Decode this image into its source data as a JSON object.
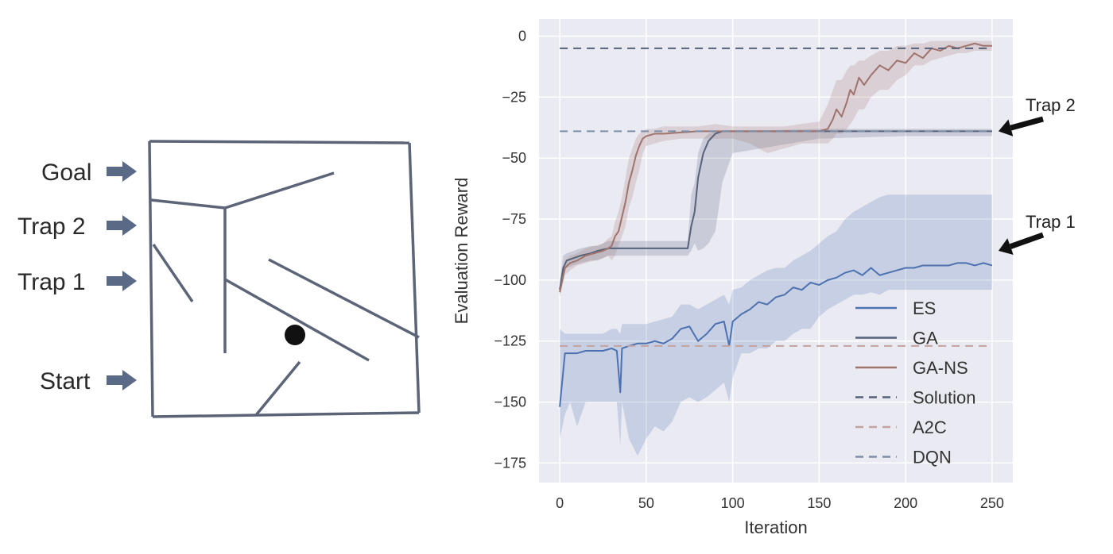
{
  "maze": {
    "labels": [
      "Goal",
      "Trap 2",
      "Trap 1",
      "Start"
    ],
    "wall_color": "#5c6478",
    "arrow_color": "#5a6a86"
  },
  "chart_data": {
    "type": "line",
    "title": "",
    "xlabel": "Iteration",
    "ylabel": "Evaluation Reward",
    "xlim": [
      -12,
      262
    ],
    "ylim": [
      -183,
      7
    ],
    "xticks": [
      0,
      50,
      100,
      150,
      200,
      250
    ],
    "yticks": [
      0,
      -25,
      -50,
      -75,
      -100,
      -125,
      -150,
      -175
    ],
    "xtick_labels": [
      "0",
      "50",
      "100",
      "150",
      "200",
      "250"
    ],
    "ytick_labels": [
      "0",
      "−25",
      "−50",
      "−75",
      "−100",
      "−125",
      "−150",
      "−175"
    ],
    "grid": true,
    "background": "#eaeaf2",
    "legend_position": "lower-right",
    "series": [
      {
        "name": "ES",
        "style": "solid",
        "color": "#4c72b0",
        "x": [
          0,
          3,
          6,
          10,
          15,
          20,
          25,
          30,
          33,
          35,
          36,
          40,
          45,
          50,
          55,
          60,
          65,
          70,
          75,
          80,
          85,
          90,
          95,
          98,
          100,
          105,
          110,
          115,
          120,
          125,
          130,
          135,
          140,
          145,
          150,
          155,
          160,
          165,
          170,
          175,
          180,
          185,
          190,
          195,
          200,
          205,
          210,
          215,
          220,
          225,
          230,
          235,
          240,
          245,
          250
        ],
        "y": [
          -152,
          -130,
          -130,
          -130,
          -129,
          -129,
          -129,
          -128,
          -129,
          -146,
          -128,
          -127,
          -126,
          -126,
          -125,
          -126,
          -124,
          -120,
          -119,
          -125,
          -122,
          -118,
          -117,
          -127,
          -117,
          -114,
          -112,
          -109,
          -110,
          -107,
          -106,
          -103,
          -104,
          -101,
          -102,
          -100,
          -99,
          -97,
          -96,
          -98,
          -95,
          -98,
          -97,
          -96,
          -95,
          -95,
          -94,
          -94,
          -94,
          -94,
          -93,
          -93,
          -94,
          -93,
          -94
        ],
        "band_lower": [
          -165,
          -155,
          -150,
          -160,
          -150,
          -150,
          -150,
          -150,
          -150,
          -168,
          -150,
          -165,
          -172,
          -165,
          -160,
          -162,
          -158,
          -150,
          -148,
          -150,
          -148,
          -145,
          -142,
          -150,
          -140,
          -130,
          -130,
          -128,
          -128,
          -125,
          -125,
          -122,
          -120,
          -120,
          -115,
          -112,
          -110,
          -108,
          -106,
          -106,
          -105,
          -106,
          -104,
          -104,
          -104,
          -104,
          -104,
          -104,
          -104,
          -104,
          -104,
          -104,
          -104,
          -104,
          -104
        ],
        "band_upper": [
          -120,
          -122,
          -122,
          -122,
          -122,
          -122,
          -122,
          -120,
          -120,
          -122,
          -118,
          -118,
          -118,
          -118,
          -117,
          -116,
          -115,
          -110,
          -110,
          -112,
          -110,
          -108,
          -106,
          -110,
          -104,
          -103,
          -100,
          -98,
          -96,
          -95,
          -95,
          -92,
          -90,
          -88,
          -85,
          -82,
          -80,
          -75,
          -72,
          -70,
          -68,
          -66,
          -65,
          -65,
          -65,
          -65,
          -65,
          -65,
          -65,
          -65,
          -65,
          -65,
          -65,
          -65,
          -65
        ]
      },
      {
        "name": "GA",
        "style": "solid",
        "color": "#55627a",
        "x": [
          0,
          2,
          4,
          8,
          12,
          18,
          22,
          28,
          30,
          35,
          40,
          50,
          60,
          70,
          74,
          76,
          78,
          80,
          83,
          86,
          90,
          94,
          100,
          150,
          200,
          250
        ],
        "y": [
          -104,
          -95,
          -92,
          -91,
          -90,
          -89,
          -88,
          -87,
          -87,
          -87,
          -87,
          -87,
          -87,
          -87,
          -87,
          -78,
          -72,
          -58,
          -48,
          -43,
          -40,
          -39,
          -39,
          -39,
          -39,
          -39
        ],
        "band_lower": [
          -106,
          -98,
          -95,
          -94,
          -93,
          -92,
          -92,
          -90,
          -90,
          -90,
          -90,
          -90,
          -90,
          -90,
          -90,
          -88,
          -85,
          -88,
          -87,
          -85,
          -80,
          -60,
          -48,
          -42,
          -41,
          -41
        ],
        "band_upper": [
          -100,
          -90,
          -89,
          -88,
          -87,
          -86,
          -86,
          -84,
          -84,
          -84,
          -84,
          -84,
          -84,
          -84,
          -84,
          -65,
          -60,
          -48,
          -42,
          -40,
          -39,
          -39,
          -39,
          -38,
          -38,
          -38
        ]
      },
      {
        "name": "GA-NS",
        "style": "solid",
        "color": "#a0736c",
        "x": [
          0,
          3,
          6,
          10,
          15,
          20,
          25,
          28,
          30,
          32,
          34,
          36,
          38,
          40,
          42,
          44,
          46,
          48,
          50,
          55,
          60,
          70,
          80,
          90,
          100,
          110,
          120,
          130,
          140,
          150,
          155,
          158,
          160,
          163,
          166,
          168,
          170,
          173,
          176,
          180,
          185,
          190,
          195,
          200,
          205,
          210,
          215,
          220,
          225,
          230,
          235,
          240,
          245,
          250
        ],
        "y": [
          -105,
          -95,
          -93,
          -92,
          -90,
          -89,
          -88,
          -87,
          -86,
          -82,
          -80,
          -74,
          -68,
          -60,
          -55,
          -49,
          -45,
          -42,
          -41,
          -40,
          -40,
          -39.5,
          -39,
          -39,
          -39,
          -39,
          -39,
          -39,
          -39,
          -39,
          -38,
          -34,
          -30,
          -33,
          -27,
          -22,
          -24,
          -17,
          -20,
          -16,
          -12,
          -14,
          -10,
          -11,
          -7,
          -9,
          -5,
          -6,
          -4,
          -5,
          -4,
          -3,
          -4,
          -4
        ],
        "band_lower": [
          -107,
          -98,
          -96,
          -94,
          -93,
          -92,
          -91,
          -90,
          -92,
          -90,
          -86,
          -82,
          -78,
          -70,
          -66,
          -60,
          -55,
          -48,
          -45,
          -44,
          -43,
          -42,
          -42,
          -42,
          -42,
          -44,
          -48,
          -46,
          -44,
          -44,
          -44,
          -42,
          -40,
          -40,
          -38,
          -36,
          -34,
          -30,
          -30,
          -25,
          -22,
          -22,
          -18,
          -16,
          -12,
          -12,
          -10,
          -9,
          -8,
          -7,
          -7,
          -6,
          -6,
          -6
        ],
        "band_upper": [
          -102,
          -92,
          -90,
          -89,
          -87,
          -86,
          -85,
          -83,
          -82,
          -76,
          -72,
          -66,
          -58,
          -50,
          -46,
          -42,
          -40,
          -39,
          -38,
          -38,
          -37,
          -37,
          -37,
          -36,
          -37,
          -37,
          -37,
          -37,
          -36,
          -35,
          -28,
          -22,
          -18,
          -18,
          -14,
          -12,
          -12,
          -10,
          -10,
          -8,
          -6,
          -6,
          -4,
          -4,
          -3,
          -3,
          -2,
          -2,
          -2,
          -2,
          -2,
          -2,
          -2,
          -2
        ]
      },
      {
        "name": "Solution",
        "style": "dashed",
        "color": "#55627a",
        "x": [
          0,
          250
        ],
        "y": [
          -5,
          -5
        ]
      },
      {
        "name": "A2C",
        "style": "dashed",
        "color": "#c4a39e",
        "x": [
          0,
          250
        ],
        "y": [
          -127,
          -127
        ]
      },
      {
        "name": "DQN",
        "style": "dashed",
        "color": "#7d8ea8",
        "x": [
          0,
          250
        ],
        "y": [
          -39,
          -39
        ]
      }
    ],
    "annotations": [
      {
        "text": "Trap 2",
        "points_to": [
          250,
          -39
        ]
      },
      {
        "text": "Trap 1",
        "points_to": [
          250,
          -88
        ]
      }
    ]
  }
}
